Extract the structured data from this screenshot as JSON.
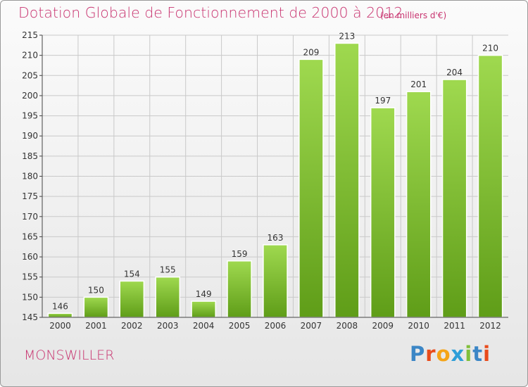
{
  "header": {
    "title": "Dotation Globale de Fonctionnement de 2000 à 2012",
    "unit_note": "(en milliers d'€)"
  },
  "footer": {
    "town": "MONSWILLER",
    "logo": {
      "letters": [
        "P",
        "r",
        "o",
        "x",
        "i",
        "t",
        "i"
      ],
      "colors": [
        "#3b86c6",
        "#e94b1b",
        "#f5a417",
        "#2e9ed8",
        "#7fbf3a",
        "#3b86c6",
        "#e94b1b"
      ]
    }
  },
  "colors": {
    "accent": "#c8336f",
    "bar_top": "#9fd94f",
    "bar_bottom": "#5f9d18",
    "grid": "#c9c9c9",
    "axis": "#444444"
  },
  "chart_data": {
    "type": "bar",
    "title": "Dotation Globale de Fonctionnement de 2000 à 2012",
    "subtitle": "(en milliers d'€)",
    "categories": [
      "2000",
      "2001",
      "2002",
      "2003",
      "2004",
      "2005",
      "2006",
      "2007",
      "2008",
      "2009",
      "2010",
      "2011",
      "2012"
    ],
    "values": [
      146,
      150,
      154,
      155,
      149,
      159,
      163,
      209,
      213,
      197,
      201,
      204,
      210
    ],
    "data_labels": [
      "146",
      "150",
      "154",
      "155",
      "149",
      "159",
      "163",
      "209",
      "213",
      "197",
      "201",
      "204",
      "210"
    ],
    "xlabel": "",
    "ylabel": "",
    "ylim": [
      145,
      215
    ],
    "yticks": [
      145,
      150,
      155,
      160,
      165,
      170,
      175,
      180,
      185,
      190,
      195,
      200,
      205,
      210,
      215
    ],
    "grid": true,
    "legend": "none"
  }
}
